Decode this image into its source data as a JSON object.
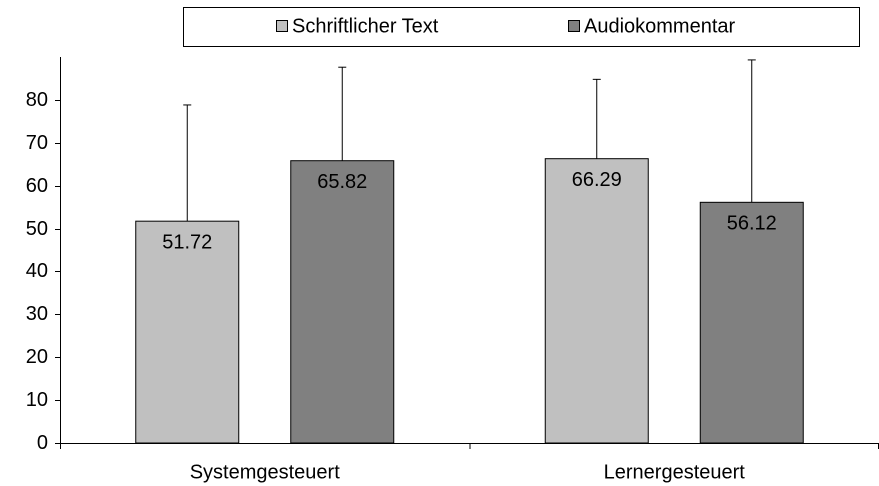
{
  "chart_data": {
    "type": "bar",
    "categories": [
      "Systemgesteuert",
      "Lernergesteuert"
    ],
    "series": [
      {
        "name": "Schriftlicher Text",
        "color": "#c0c0c0",
        "values": [
          51.72,
          66.29
        ],
        "errors": [
          27.1,
          18.5
        ]
      },
      {
        "name": "Audiokommentar",
        "color": "#808080",
        "values": [
          65.82,
          56.12
        ],
        "errors": [
          21.8,
          33.2
        ]
      }
    ],
    "ylim": [
      0,
      90
    ],
    "yticks": [
      0,
      10,
      20,
      30,
      40,
      50,
      60,
      70,
      80
    ],
    "grid": false,
    "legend": "top"
  }
}
